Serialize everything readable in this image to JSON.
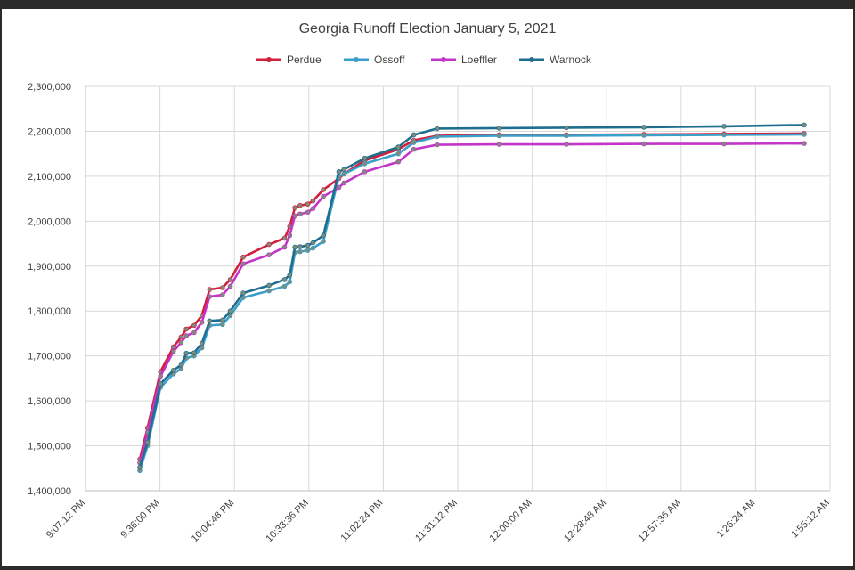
{
  "chart_data": {
    "type": "line",
    "title": "Georgia Runoff Election January 5, 2021",
    "xlabel": "",
    "ylabel": "",
    "ylim": [
      1400000,
      2300000
    ],
    "y_ticks": [
      "1,400,000",
      "1,500,000",
      "1,600,000",
      "1,700,000",
      "1,800,000",
      "1,900,000",
      "2,000,000",
      "2,100,000",
      "2,200,000",
      "2,300,000"
    ],
    "x_ticks": [
      "9:07:12 PM",
      "9:36:00 PM",
      "10:04:48 PM",
      "10:33:36 PM",
      "11:02:24 PM",
      "11:31:12 PM",
      "12:00:00 AM",
      "12:28:48 AM",
      "12:57:36 AM",
      "1:26:24 AM",
      "1:55:12 AM"
    ],
    "x_range_minutes": [
      0,
      288
    ],
    "x_minutes": [
      21,
      24,
      29,
      34,
      37,
      39,
      42,
      45,
      48,
      53,
      56,
      61,
      71,
      77,
      79,
      81,
      83,
      86,
      88,
      92,
      98,
      100,
      108,
      121,
      127,
      136,
      160,
      186,
      216,
      247,
      278
    ],
    "legend_position": "top",
    "grid": true,
    "series": [
      {
        "name": "Perdue",
        "color": "#d21f3c",
        "values": [
          1470000,
          1540000,
          1665000,
          1720000,
          1742000,
          1760000,
          1768000,
          1790000,
          1848000,
          1852000,
          1870000,
          1920000,
          1948000,
          1962000,
          1988000,
          2030000,
          2035000,
          2038000,
          2045000,
          2070000,
          2095000,
          2105000,
          2135000,
          2160000,
          2180000,
          2190000,
          2192000,
          2192000,
          2193000,
          2194000,
          2195000
        ]
      },
      {
        "name": "Ossoff",
        "color": "#3a9fc9",
        "values": [
          1445000,
          1500000,
          1630000,
          1660000,
          1672000,
          1695000,
          1700000,
          1718000,
          1768000,
          1770000,
          1790000,
          1830000,
          1845000,
          1855000,
          1865000,
          1930000,
          1932000,
          1935000,
          1940000,
          1955000,
          2100000,
          2105000,
          2128000,
          2150000,
          2175000,
          2188000,
          2190000,
          2190000,
          2191000,
          2192000,
          2193000
        ]
      },
      {
        "name": "Loeffler",
        "color": "#c334c9",
        "values": [
          1462000,
          1530000,
          1655000,
          1710000,
          1730000,
          1745000,
          1752000,
          1775000,
          1832000,
          1836000,
          1855000,
          1905000,
          1925000,
          1942000,
          1968000,
          2012000,
          2016000,
          2020000,
          2028000,
          2055000,
          2075000,
          2085000,
          2110000,
          2132000,
          2160000,
          2170000,
          2171000,
          2171000,
          2172000,
          2172000,
          2173000
        ]
      },
      {
        "name": "Warnock",
        "color": "#1f6e8f",
        "values": [
          1452000,
          1508000,
          1638000,
          1668000,
          1680000,
          1706000,
          1707000,
          1728000,
          1778000,
          1780000,
          1800000,
          1840000,
          1857000,
          1870000,
          1880000,
          1942000,
          1943000,
          1946000,
          1952000,
          1968000,
          2110000,
          2115000,
          2140000,
          2165000,
          2192000,
          2206000,
          2207000,
          2208000,
          2209000,
          2211000,
          2214000
        ]
      }
    ]
  }
}
